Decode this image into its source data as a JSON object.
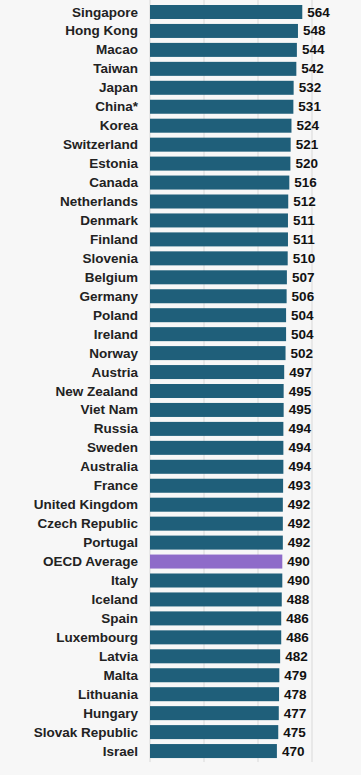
{
  "chart_data": {
    "type": "bar",
    "orientation": "horizontal",
    "categories": [
      "Singapore",
      "Hong Kong",
      "Macao",
      "Taiwan",
      "Japan",
      "China*",
      "Korea",
      "Switzerland",
      "Estonia",
      "Canada",
      "Netherlands",
      "Denmark",
      "Finland",
      "Slovenia",
      "Belgium",
      "Germany",
      "Poland",
      "Ireland",
      "Norway",
      "Austria",
      "New Zealand",
      "Viet Nam",
      "Russia",
      "Sweden",
      "Australia",
      "France",
      "United Kingdom",
      "Czech Republic",
      "Portugal",
      "OECD Average",
      "Italy",
      "Iceland",
      "Spain",
      "Luxembourg",
      "Latvia",
      "Malta",
      "Lithuania",
      "Hungary",
      "Slovak Republic",
      "Israel"
    ],
    "values": [
      564,
      548,
      544,
      542,
      532,
      531,
      524,
      521,
      520,
      516,
      512,
      511,
      511,
      510,
      507,
      506,
      504,
      504,
      502,
      497,
      495,
      495,
      494,
      494,
      494,
      493,
      492,
      492,
      492,
      490,
      490,
      488,
      486,
      486,
      482,
      479,
      478,
      477,
      475,
      470
    ],
    "colors": [
      "#1f5f7a",
      "#1f5f7a",
      "#1f5f7a",
      "#1f5f7a",
      "#1f5f7a",
      "#1f5f7a",
      "#1f5f7a",
      "#1f5f7a",
      "#1f5f7a",
      "#1f5f7a",
      "#1f5f7a",
      "#1f5f7a",
      "#1f5f7a",
      "#1f5f7a",
      "#1f5f7a",
      "#1f5f7a",
      "#1f5f7a",
      "#1f5f7a",
      "#1f5f7a",
      "#1f5f7a",
      "#1f5f7a",
      "#1f5f7a",
      "#1f5f7a",
      "#1f5f7a",
      "#1f5f7a",
      "#1f5f7a",
      "#1f5f7a",
      "#1f5f7a",
      "#1f5f7a",
      "#8e6bc9",
      "#1f5f7a",
      "#1f5f7a",
      "#1f5f7a",
      "#1f5f7a",
      "#1f5f7a",
      "#1f5f7a",
      "#1f5f7a",
      "#1f5f7a",
      "#1f5f7a",
      "#1f5f7a"
    ],
    "xlim": [
      0,
      600
    ],
    "xticks": [
      0,
      200,
      400,
      600
    ],
    "grid": true,
    "data_labels": true,
    "tick_labels": false
  }
}
